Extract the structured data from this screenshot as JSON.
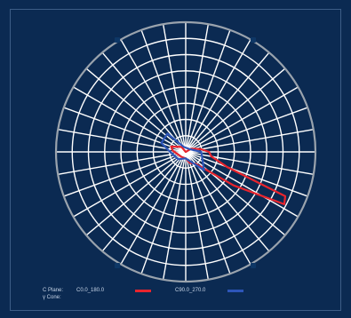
{
  "legend": {
    "c_plane_label": "C Plane:",
    "gamma_label": "γ Cone:",
    "series_1_label": "C0.0_180.0",
    "series_2_label": "C90.0_270.0",
    "series_1_color": "#e8242d",
    "series_2_color": "#2d55b8"
  },
  "chart_data": {
    "type": "polar",
    "title": "",
    "angular_gridlines_deg": 10,
    "radial_rings": 8,
    "grid": true,
    "grid_color": "#ffffff",
    "outer_ring_color": "#9aa3ad",
    "legend_position": "bottom",
    "series": [
      {
        "name": "C0.0_180.0",
        "color": "#e8242d",
        "points": [
          {
            "angle": 0,
            "r": 0.05
          },
          {
            "angle": 20,
            "r": 0.09
          },
          {
            "angle": 40,
            "r": 0.12
          },
          {
            "angle": 55,
            "r": 0.45
          },
          {
            "angle": 62,
            "r": 0.86
          },
          {
            "angle": 66,
            "r": 0.84
          },
          {
            "angle": 70,
            "r": 0.34
          },
          {
            "angle": 80,
            "r": 0.2
          },
          {
            "angle": 90,
            "r": 0.18
          },
          {
            "angle": 100,
            "r": 0.12
          },
          {
            "angle": 120,
            "r": 0.05
          },
          {
            "angle": 180,
            "r": 0.0
          },
          {
            "angle": 220,
            "r": 0.05
          },
          {
            "angle": 250,
            "r": 0.12
          },
          {
            "angle": 265,
            "r": 0.1
          },
          {
            "angle": 280,
            "r": 0.07
          },
          {
            "angle": 320,
            "r": 0.05
          }
        ]
      },
      {
        "name": "C90.0_270.0",
        "color": "#2d55b8",
        "points": [
          {
            "angle": 0,
            "r": 0.05
          },
          {
            "angle": 45,
            "r": 0.2
          },
          {
            "angle": 90,
            "r": 0.12
          },
          {
            "angle": 120,
            "r": 0.04
          },
          {
            "angle": 200,
            "r": 0.04
          },
          {
            "angle": 225,
            "r": 0.2
          },
          {
            "angle": 250,
            "r": 0.2
          },
          {
            "angle": 270,
            "r": 0.12
          },
          {
            "angle": 315,
            "r": 0.08
          }
        ]
      }
    ]
  }
}
